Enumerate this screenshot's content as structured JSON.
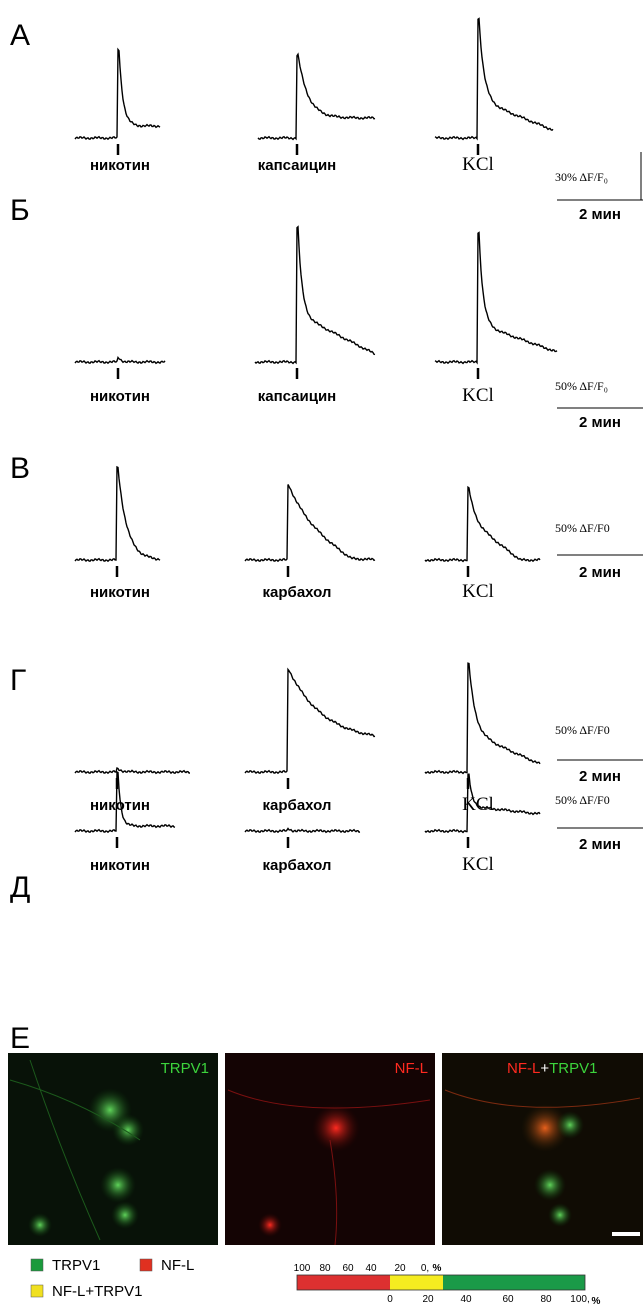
{
  "panels": [
    {
      "letter": "А",
      "labels": [
        "никотин",
        "капсаицин",
        "KCl"
      ],
      "scale": {
        "amplitude": "30% ΔF/F₀",
        "time": "2 мин"
      }
    },
    {
      "letter": "Б",
      "labels": [
        "никотин",
        "капсаицин",
        "KCl"
      ],
      "scale": {
        "amplitude": "50% ΔF/F₀",
        "time": "2 мин"
      }
    },
    {
      "letter": "В",
      "labels": [
        "никотин",
        "карбахол",
        "KCl"
      ],
      "scale": {
        "amplitude": "50% ΔF/F0",
        "time": "2 мин"
      }
    },
    {
      "letter": "Г",
      "labels": [
        "никотин",
        "карбахол",
        "KCl"
      ],
      "scale": {
        "amplitude": "50% ΔF/F0",
        "time": "2 мин"
      }
    },
    {
      "letter": "Д",
      "labels": [
        "никотин",
        "карбахол",
        "KCl"
      ],
      "scale": {
        "amplitude": "50% ΔF/F0",
        "time": "2 мин"
      }
    }
  ],
  "figure_e": {
    "letter": "Е",
    "images": [
      "TRPV1",
      "NF-L"
    ],
    "merge": [
      "NF-L",
      "+",
      "TRPV1"
    ],
    "legend": [
      "TRPV1",
      "NF-L",
      "NF-L+TRPV1"
    ],
    "bar": {
      "top_ticks": [
        "100",
        "80",
        "60",
        "40",
        "20",
        "0,"
      ],
      "top_unit": "%",
      "bottom_ticks": [
        "0",
        "20",
        "40",
        "60",
        "80",
        "100,"
      ],
      "bottom_unit": "%"
    }
  }
}
